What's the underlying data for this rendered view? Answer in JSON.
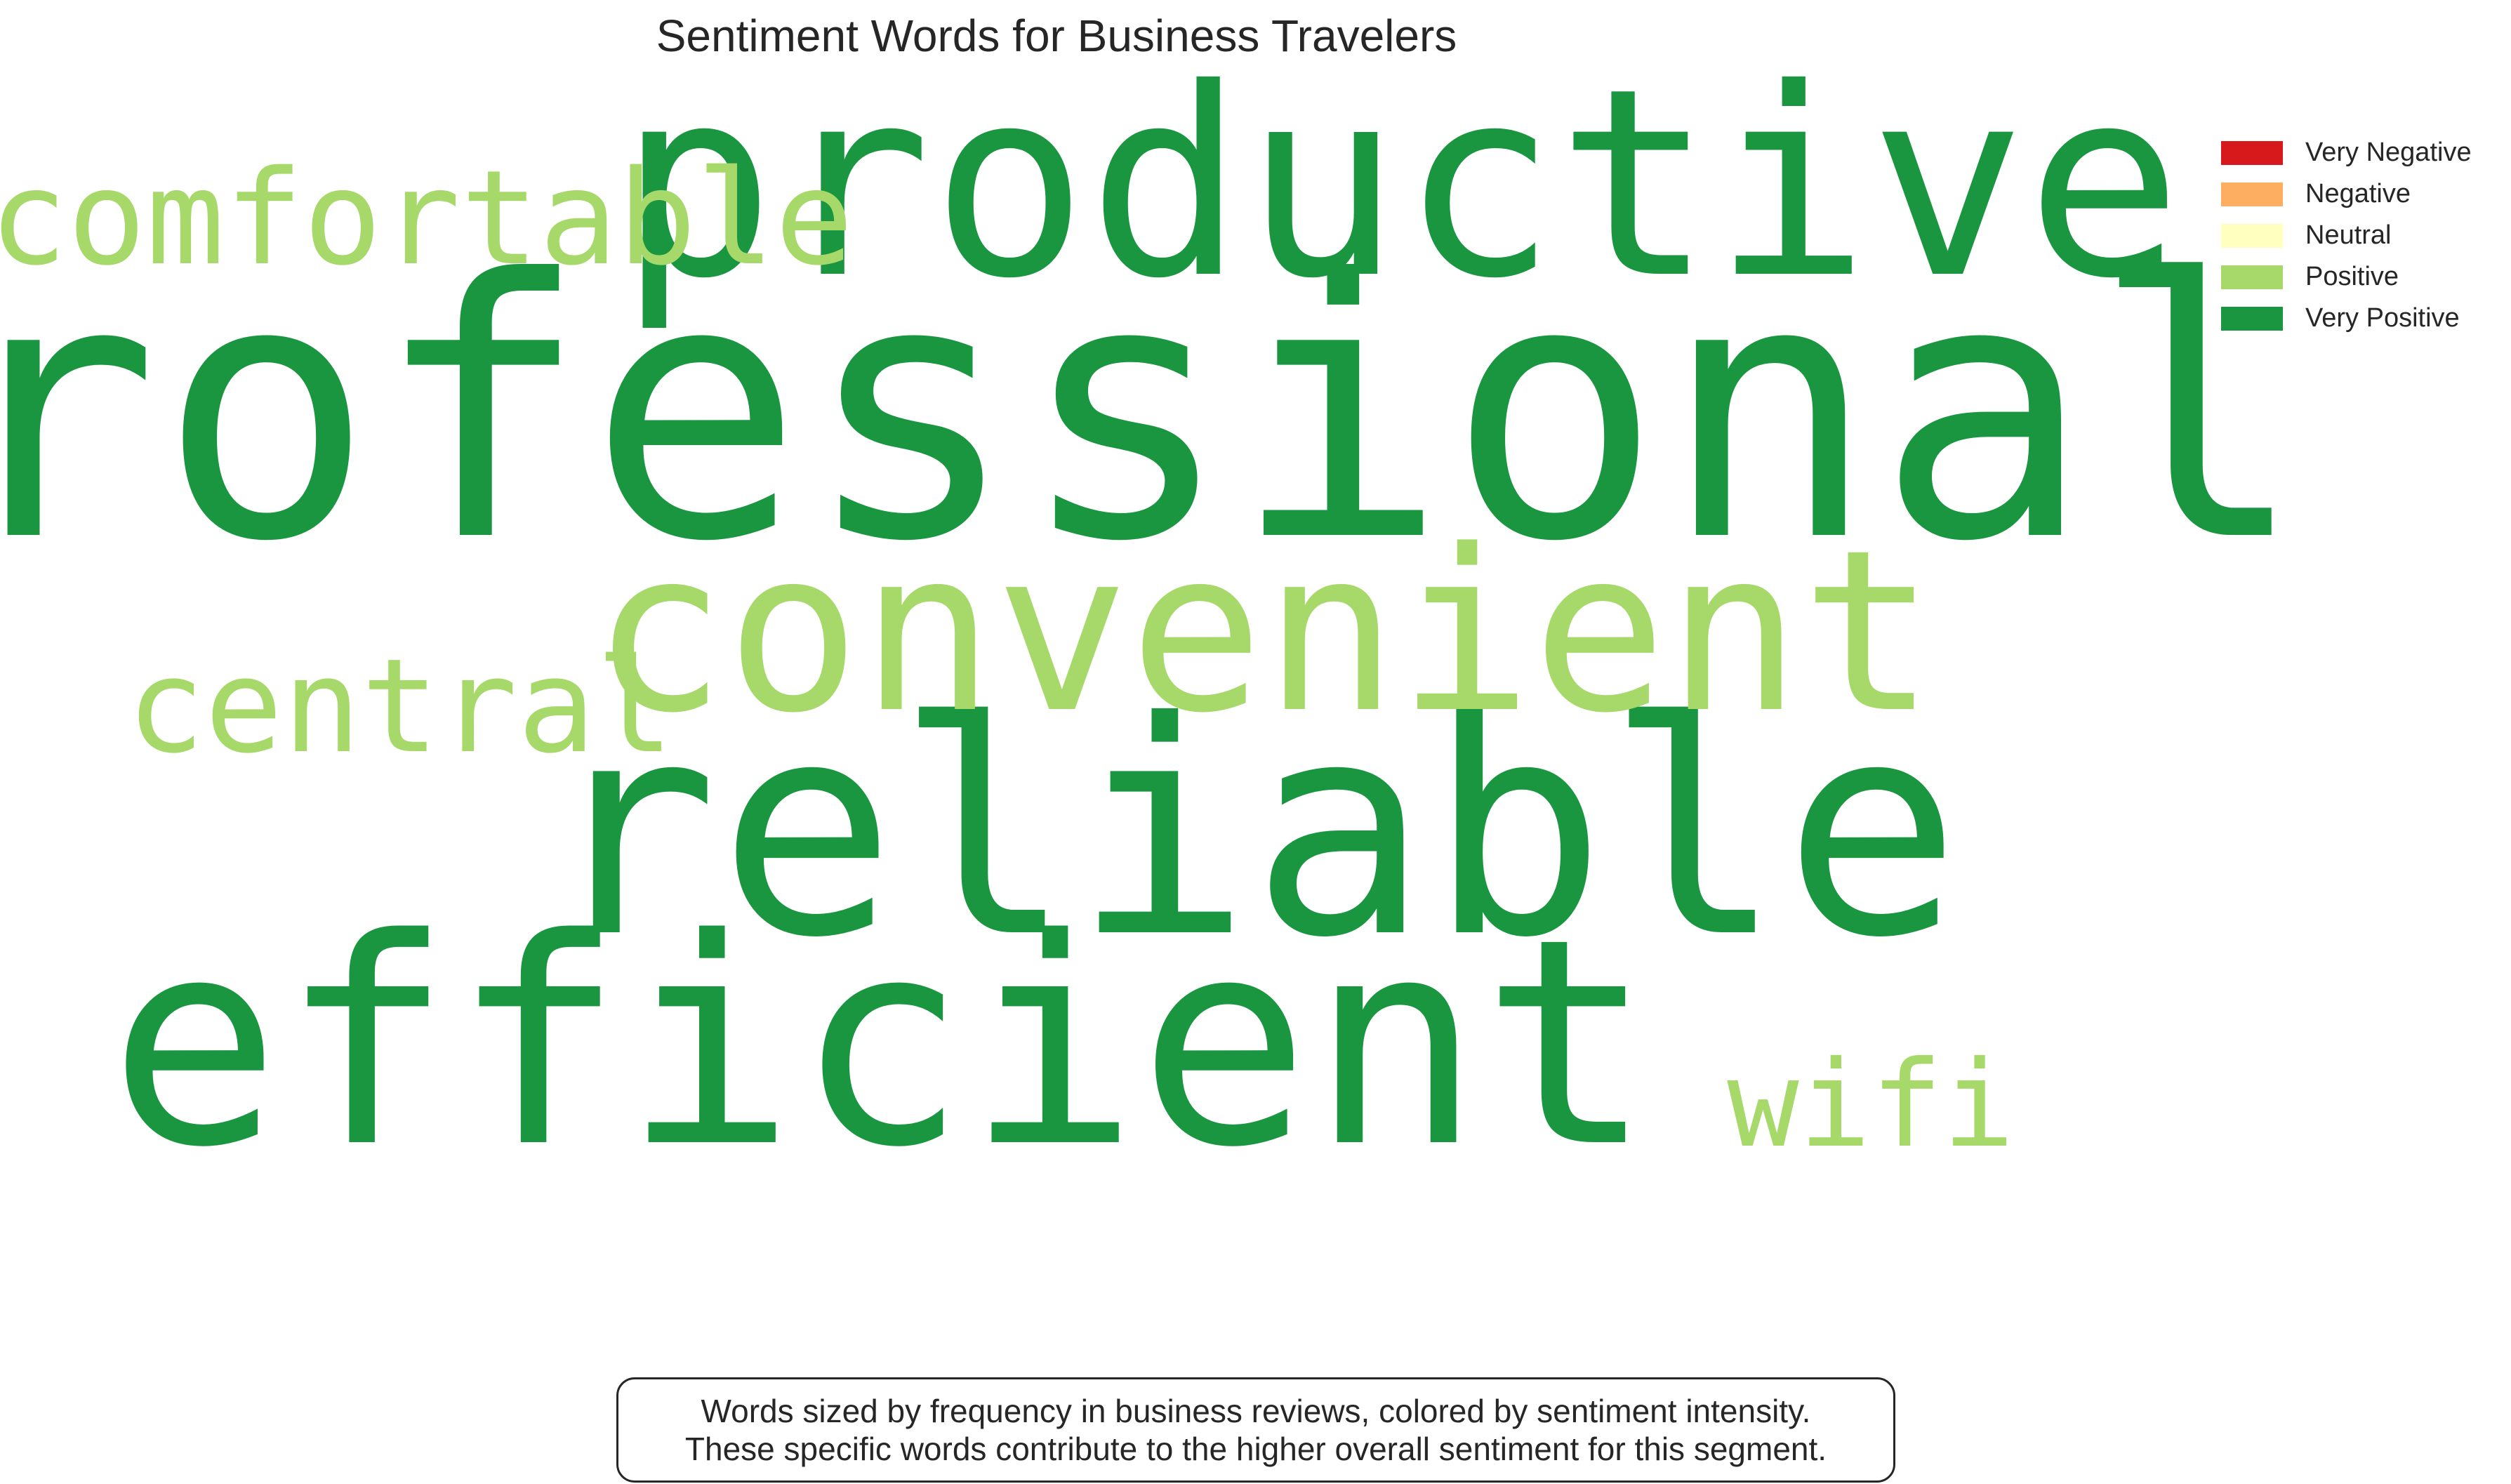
{
  "chart_data": {
    "type": "wordcloud",
    "title": "Sentiment Words for Business Travelers",
    "words": [
      {
        "text": "professional",
        "sentiment": "Very Positive"
      },
      {
        "text": "productive",
        "sentiment": "Very Positive"
      },
      {
        "text": "reliable",
        "sentiment": "Very Positive"
      },
      {
        "text": "efficient",
        "sentiment": "Very Positive"
      },
      {
        "text": "convenient",
        "sentiment": "Positive"
      },
      {
        "text": "comfortable",
        "sentiment": "Positive"
      },
      {
        "text": "central",
        "sentiment": "Positive"
      },
      {
        "text": "wifi",
        "sentiment": "Positive"
      }
    ],
    "legend": {
      "placement": "top-right",
      "entries": [
        {
          "label": "Very Negative",
          "color": "#d7191c"
        },
        {
          "label": "Negative",
          "color": "#fdae61"
        },
        {
          "label": "Neutral",
          "color": "#ffffbf"
        },
        {
          "label": "Positive",
          "color": "#a6d96a"
        },
        {
          "label": "Very Positive",
          "color": "#1a9641"
        }
      ]
    },
    "annotation": [
      "Words sized by frequency in business reviews, colored by sentiment intensity.",
      "These specific words contribute to the higher overall sentiment for this segment."
    ]
  }
}
